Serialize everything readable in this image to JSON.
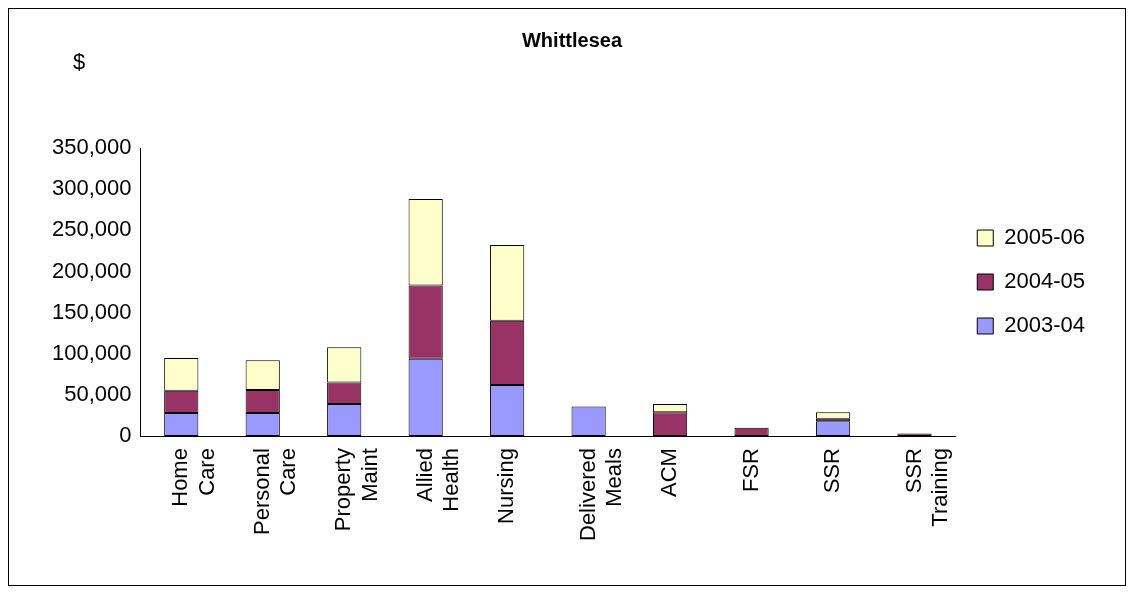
{
  "chart_data": {
    "type": "bar",
    "title": "Whittlesea",
    "ylabel": "$",
    "stacked": true,
    "legend": "right",
    "grid": false,
    "categories": [
      "Home Care",
      "Personal Care",
      "Property Maint",
      "Allied Health",
      "Nursing",
      "Delivered Meals",
      "ACM",
      "FSR",
      "SSR",
      "SSR Training"
    ],
    "ylim": [
      0,
      350000
    ],
    "yticks": [
      {
        "value": 0,
        "label": "0"
      },
      {
        "value": 50000,
        "label": "50,000"
      },
      {
        "value": 100000,
        "label": "100,000"
      },
      {
        "value": 150000,
        "label": "150,000"
      },
      {
        "value": 200000,
        "label": "200,000"
      },
      {
        "value": 250000,
        "label": "250,000"
      },
      {
        "value": 300000,
        "label": "300,000"
      },
      {
        "value": 350000,
        "label": "350,000"
      }
    ],
    "series": [
      {
        "name": "2003-04",
        "color": "#9999ff",
        "values": [
          28000,
          28000,
          39000,
          94000,
          62000,
          36000,
          null,
          null,
          18000,
          null
        ]
      },
      {
        "name": "2004-05",
        "color": "#993366",
        "values": [
          27000,
          28000,
          26000,
          89000,
          78000,
          null,
          29000,
          10000,
          3000,
          3000
        ]
      },
      {
        "name": "2005-06",
        "color": "#ffffcc",
        "values": [
          40000,
          36000,
          43000,
          105000,
          92000,
          null,
          10000,
          null,
          8000,
          null
        ]
      }
    ]
  }
}
